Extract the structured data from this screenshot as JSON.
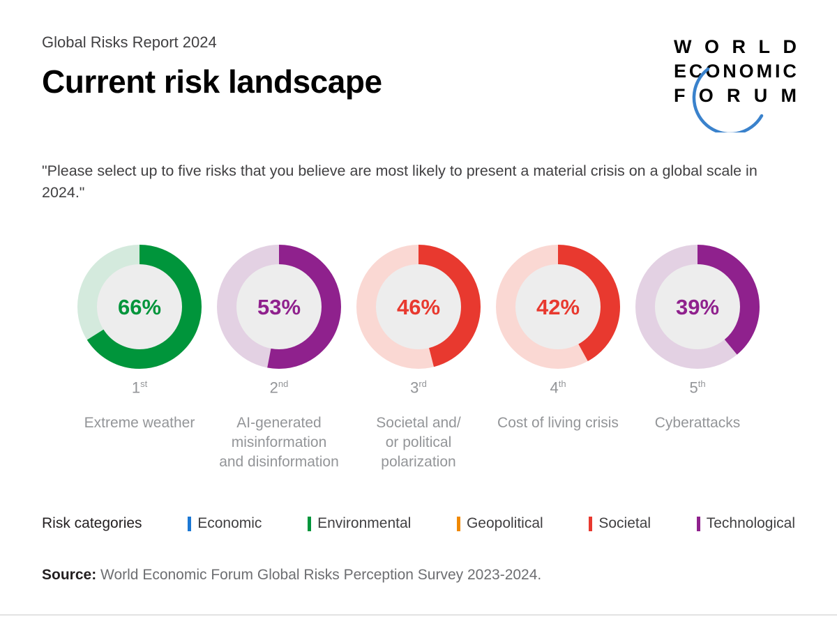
{
  "header": {
    "kicker": "Global Risks Report 2024",
    "title": "Current risk landscape",
    "logo_lines": [
      "WORLD",
      "ECONOMIC",
      "FORUM"
    ],
    "logo_arc_color": "#3a82cc"
  },
  "question": "\"Please select up to five risks that you believe are most likely to present a material crisis on a global scale in 2024.\"",
  "chart_data": {
    "type": "pie",
    "subtype": "donut-ranking",
    "title": "Current risk landscape",
    "unit": "%",
    "inner_color": "#ededed",
    "items": [
      {
        "rank": "1",
        "rank_suffix": "st",
        "value": 66,
        "label": "Extreme weather",
        "label_lines": [
          "Extreme weather"
        ],
        "category": "Environmental",
        "color": "#00953b",
        "track_color": "#d4eadd"
      },
      {
        "rank": "2",
        "rank_suffix": "nd",
        "value": 53,
        "label": "AI-generated misinformation and disinformation",
        "label_lines": [
          "AI-generated",
          "misinformation",
          "and disinformation"
        ],
        "category": "Technological",
        "color": "#8f218d",
        "track_color": "#e3d1e3"
      },
      {
        "rank": "3",
        "rank_suffix": "rd",
        "value": 46,
        "label": "Societal and/ or political polarization",
        "label_lines": [
          "Societal and/",
          "or political",
          "polarization"
        ],
        "category": "Societal",
        "color": "#e8392f",
        "track_color": "#fad8d3"
      },
      {
        "rank": "4",
        "rank_suffix": "th",
        "value": 42,
        "label": "Cost of living crisis",
        "label_lines": [
          "Cost of living crisis"
        ],
        "category": "Societal",
        "color": "#e8392f",
        "track_color": "#fad8d3"
      },
      {
        "rank": "5",
        "rank_suffix": "th",
        "value": 39,
        "label": "Cyberattacks",
        "label_lines": [
          "Cyberattacks"
        ],
        "category": "Technological",
        "color": "#8f218d",
        "track_color": "#e3d1e3"
      }
    ]
  },
  "legend": {
    "title": "Risk categories",
    "items": [
      {
        "label": "Economic",
        "color": "#1b78d4"
      },
      {
        "label": "Environmental",
        "color": "#00953b"
      },
      {
        "label": "Geopolitical",
        "color": "#f08900"
      },
      {
        "label": "Societal",
        "color": "#e8392f"
      },
      {
        "label": "Technological",
        "color": "#8f218d"
      }
    ]
  },
  "source": {
    "prefix": "Source:",
    "text": " World Economic Forum Global Risks Perception Survey 2023-2024."
  }
}
